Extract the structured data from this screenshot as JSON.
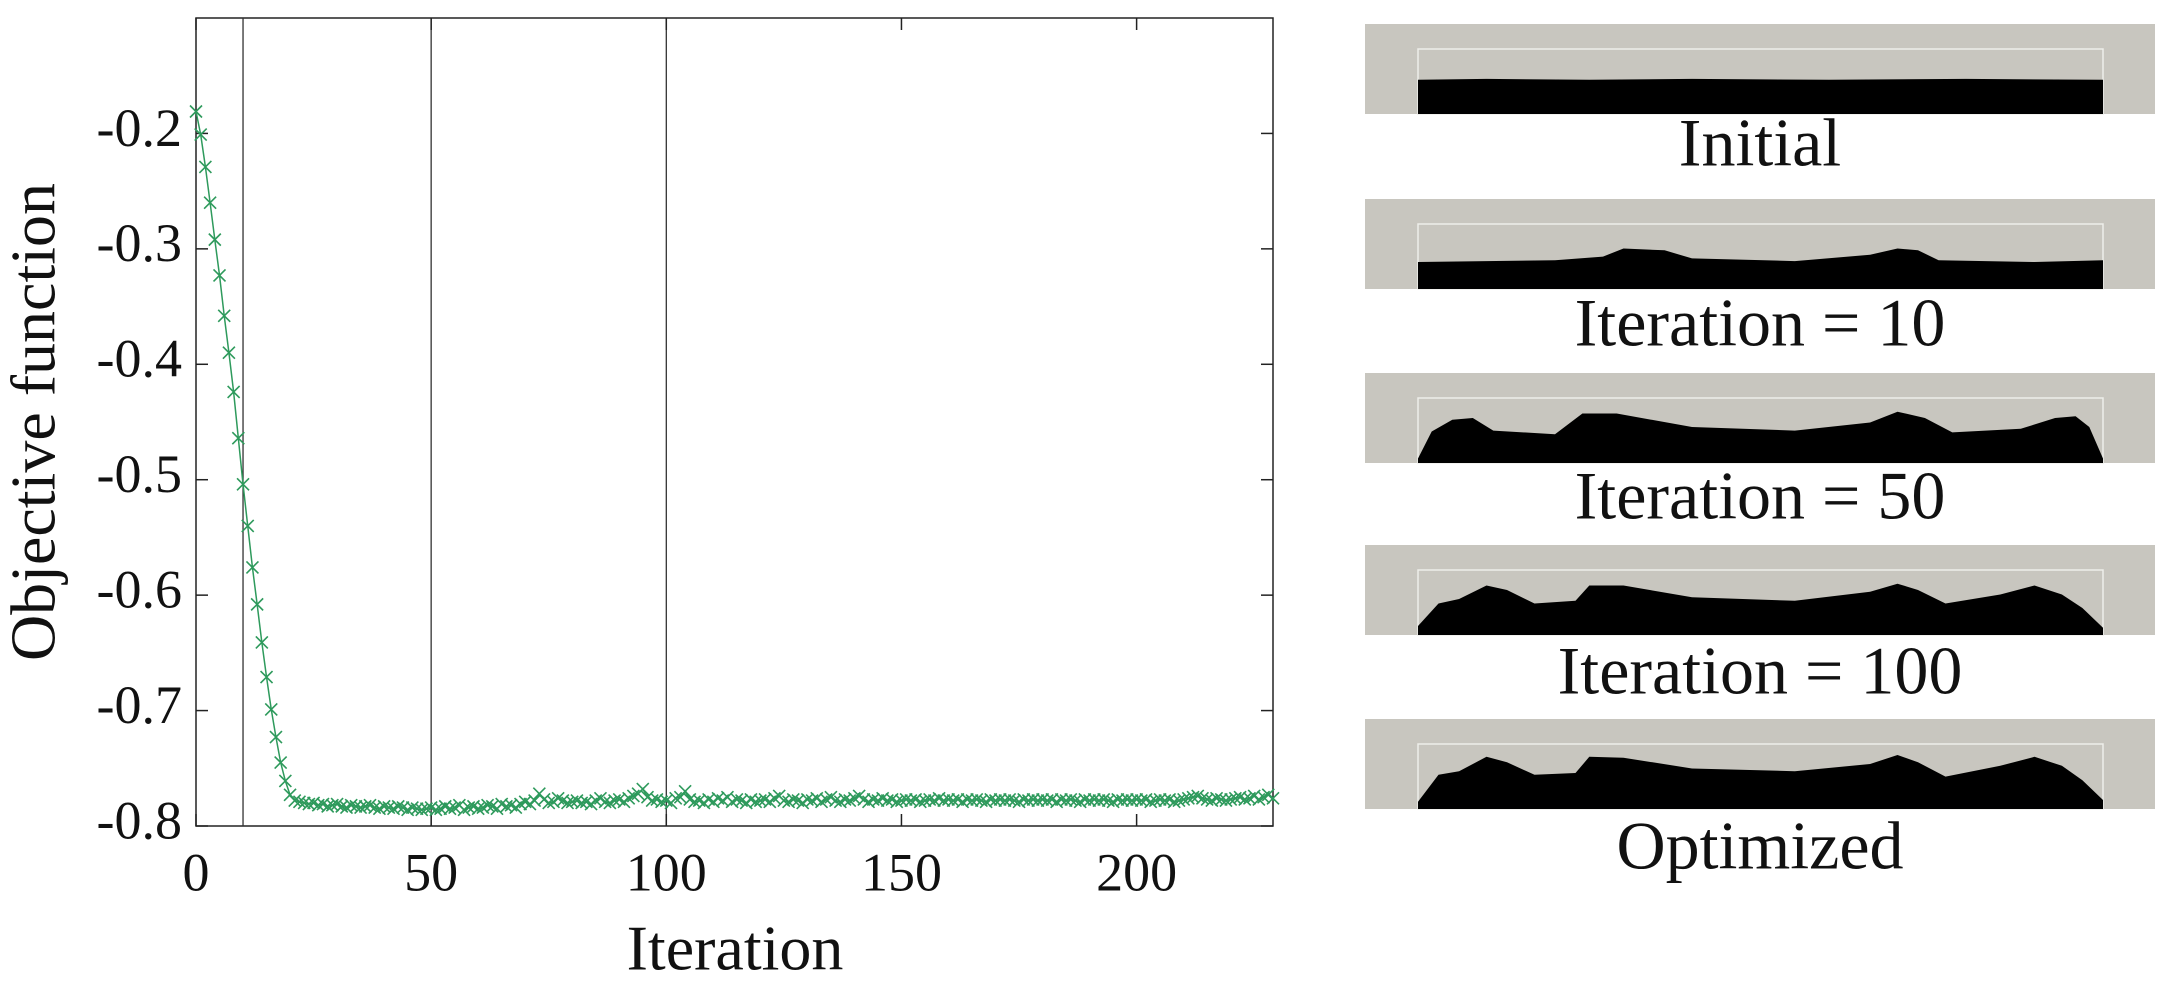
{
  "chart_data": {
    "type": "line",
    "x_label": "Iteration",
    "y_label": "Objective function",
    "color": "#2e9a5c",
    "marker": "x",
    "xlim": [
      0,
      229
    ],
    "ylim": [
      -0.8,
      -0.1
    ],
    "xticks": [
      0,
      50,
      100,
      150,
      200
    ],
    "yticks": [
      -0.8,
      -0.7,
      -0.6,
      -0.5,
      -0.4,
      -0.3,
      -0.2
    ],
    "vlines": [
      10,
      50,
      100
    ],
    "x": [
      0,
      1,
      2,
      3,
      4,
      5,
      6,
      7,
      8,
      9,
      10,
      11,
      12,
      13,
      14,
      15,
      16,
      17,
      18,
      19,
      20,
      21,
      22,
      23,
      24,
      25,
      26,
      27,
      28,
      29,
      30,
      31,
      32,
      33,
      34,
      35,
      36,
      37,
      38,
      39,
      40,
      41,
      42,
      43,
      44,
      45,
      46,
      47,
      48,
      49,
      50,
      51,
      52,
      53,
      54,
      55,
      56,
      57,
      58,
      59,
      60,
      61,
      62,
      63,
      64,
      65,
      66,
      67,
      68,
      69,
      70,
      71,
      72,
      73,
      74,
      75,
      76,
      77,
      78,
      79,
      80,
      81,
      82,
      83,
      84,
      85,
      86,
      87,
      88,
      89,
      90,
      91,
      92,
      93,
      94,
      95,
      96,
      97,
      98,
      99,
      100,
      101,
      102,
      103,
      104,
      105,
      106,
      107,
      108,
      109,
      110,
      111,
      112,
      113,
      114,
      115,
      116,
      117,
      118,
      119,
      120,
      121,
      122,
      123,
      124,
      125,
      126,
      127,
      128,
      129,
      130,
      131,
      132,
      133,
      134,
      135,
      136,
      137,
      138,
      139,
      140,
      141,
      142,
      143,
      144,
      145,
      146,
      147,
      148,
      149,
      150,
      151,
      152,
      153,
      154,
      155,
      156,
      157,
      158,
      159,
      160,
      161,
      162,
      163,
      164,
      165,
      166,
      167,
      168,
      169,
      170,
      171,
      172,
      173,
      174,
      175,
      176,
      177,
      178,
      179,
      180,
      181,
      182,
      183,
      184,
      185,
      186,
      187,
      188,
      189,
      190,
      191,
      192,
      193,
      194,
      195,
      196,
      197,
      198,
      199,
      200,
      201,
      202,
      203,
      204,
      205,
      206,
      207,
      208,
      209,
      210,
      211,
      212,
      213,
      214,
      215,
      216,
      217,
      218,
      219,
      220,
      221,
      222,
      223,
      224,
      225,
      226,
      227,
      228,
      229
    ],
    "values": [
      -0.181,
      -0.201,
      -0.229,
      -0.26,
      -0.292,
      -0.323,
      -0.358,
      -0.39,
      -0.424,
      -0.464,
      -0.504,
      -0.54,
      -0.576,
      -0.608,
      -0.641,
      -0.671,
      -0.699,
      -0.723,
      -0.745,
      -0.761,
      -0.773,
      -0.778,
      -0.779,
      -0.78,
      -0.781,
      -0.78,
      -0.782,
      -0.781,
      -0.783,
      -0.782,
      -0.781,
      -0.783,
      -0.784,
      -0.782,
      -0.783,
      -0.784,
      -0.783,
      -0.782,
      -0.784,
      -0.785,
      -0.783,
      -0.784,
      -0.785,
      -0.783,
      -0.784,
      -0.786,
      -0.784,
      -0.785,
      -0.786,
      -0.785,
      -0.784,
      -0.786,
      -0.785,
      -0.783,
      -0.785,
      -0.784,
      -0.782,
      -0.786,
      -0.784,
      -0.783,
      -0.785,
      -0.784,
      -0.782,
      -0.783,
      -0.785,
      -0.781,
      -0.783,
      -0.782,
      -0.784,
      -0.781,
      -0.779,
      -0.781,
      -0.778,
      -0.772,
      -0.777,
      -0.78,
      -0.779,
      -0.776,
      -0.778,
      -0.78,
      -0.779,
      -0.778,
      -0.78,
      -0.779,
      -0.781,
      -0.778,
      -0.776,
      -0.779,
      -0.78,
      -0.778,
      -0.777,
      -0.779,
      -0.776,
      -0.774,
      -0.772,
      -0.768,
      -0.775,
      -0.778,
      -0.777,
      -0.779,
      -0.778,
      -0.78,
      -0.776,
      -0.775,
      -0.77,
      -0.777,
      -0.779,
      -0.778,
      -0.78,
      -0.777,
      -0.779,
      -0.776,
      -0.778,
      -0.775,
      -0.779,
      -0.777,
      -0.778,
      -0.78,
      -0.777,
      -0.779,
      -0.778,
      -0.777,
      -0.779,
      -0.776,
      -0.774,
      -0.778,
      -0.779,
      -0.777,
      -0.778,
      -0.78,
      -0.777,
      -0.778,
      -0.776,
      -0.779,
      -0.777,
      -0.775,
      -0.778,
      -0.779,
      -0.777,
      -0.778,
      -0.776,
      -0.774,
      -0.777,
      -0.779,
      -0.777,
      -0.778,
      -0.776,
      -0.778,
      -0.777,
      -0.779,
      -0.778,
      -0.777,
      -0.778,
      -0.777,
      -0.779,
      -0.778,
      -0.777,
      -0.778,
      -0.776,
      -0.778,
      -0.777,
      -0.778,
      -0.777,
      -0.779,
      -0.777,
      -0.778,
      -0.777,
      -0.778,
      -0.779,
      -0.777,
      -0.778,
      -0.777,
      -0.778,
      -0.777,
      -0.778,
      -0.779,
      -0.777,
      -0.778,
      -0.777,
      -0.778,
      -0.777,
      -0.778,
      -0.777,
      -0.779,
      -0.777,
      -0.778,
      -0.777,
      -0.778,
      -0.779,
      -0.777,
      -0.778,
      -0.777,
      -0.778,
      -0.777,
      -0.778,
      -0.779,
      -0.777,
      -0.778,
      -0.777,
      -0.778,
      -0.777,
      -0.778,
      -0.777,
      -0.779,
      -0.778,
      -0.777,
      -0.778,
      -0.777,
      -0.779,
      -0.778,
      -0.777,
      -0.776,
      -0.775,
      -0.774,
      -0.776,
      -0.777,
      -0.778,
      -0.776,
      -0.777,
      -0.778,
      -0.777,
      -0.776,
      -0.775,
      -0.777,
      -0.776,
      -0.774,
      -0.777,
      -0.775,
      -0.773,
      -0.776
    ]
  },
  "panels": [
    {
      "caption": "Initial"
    },
    {
      "caption": "Iteration = 10"
    },
    {
      "caption": "Iteration = 50"
    },
    {
      "caption": "Iteration = 100"
    },
    {
      "caption": "Optimized"
    }
  ]
}
